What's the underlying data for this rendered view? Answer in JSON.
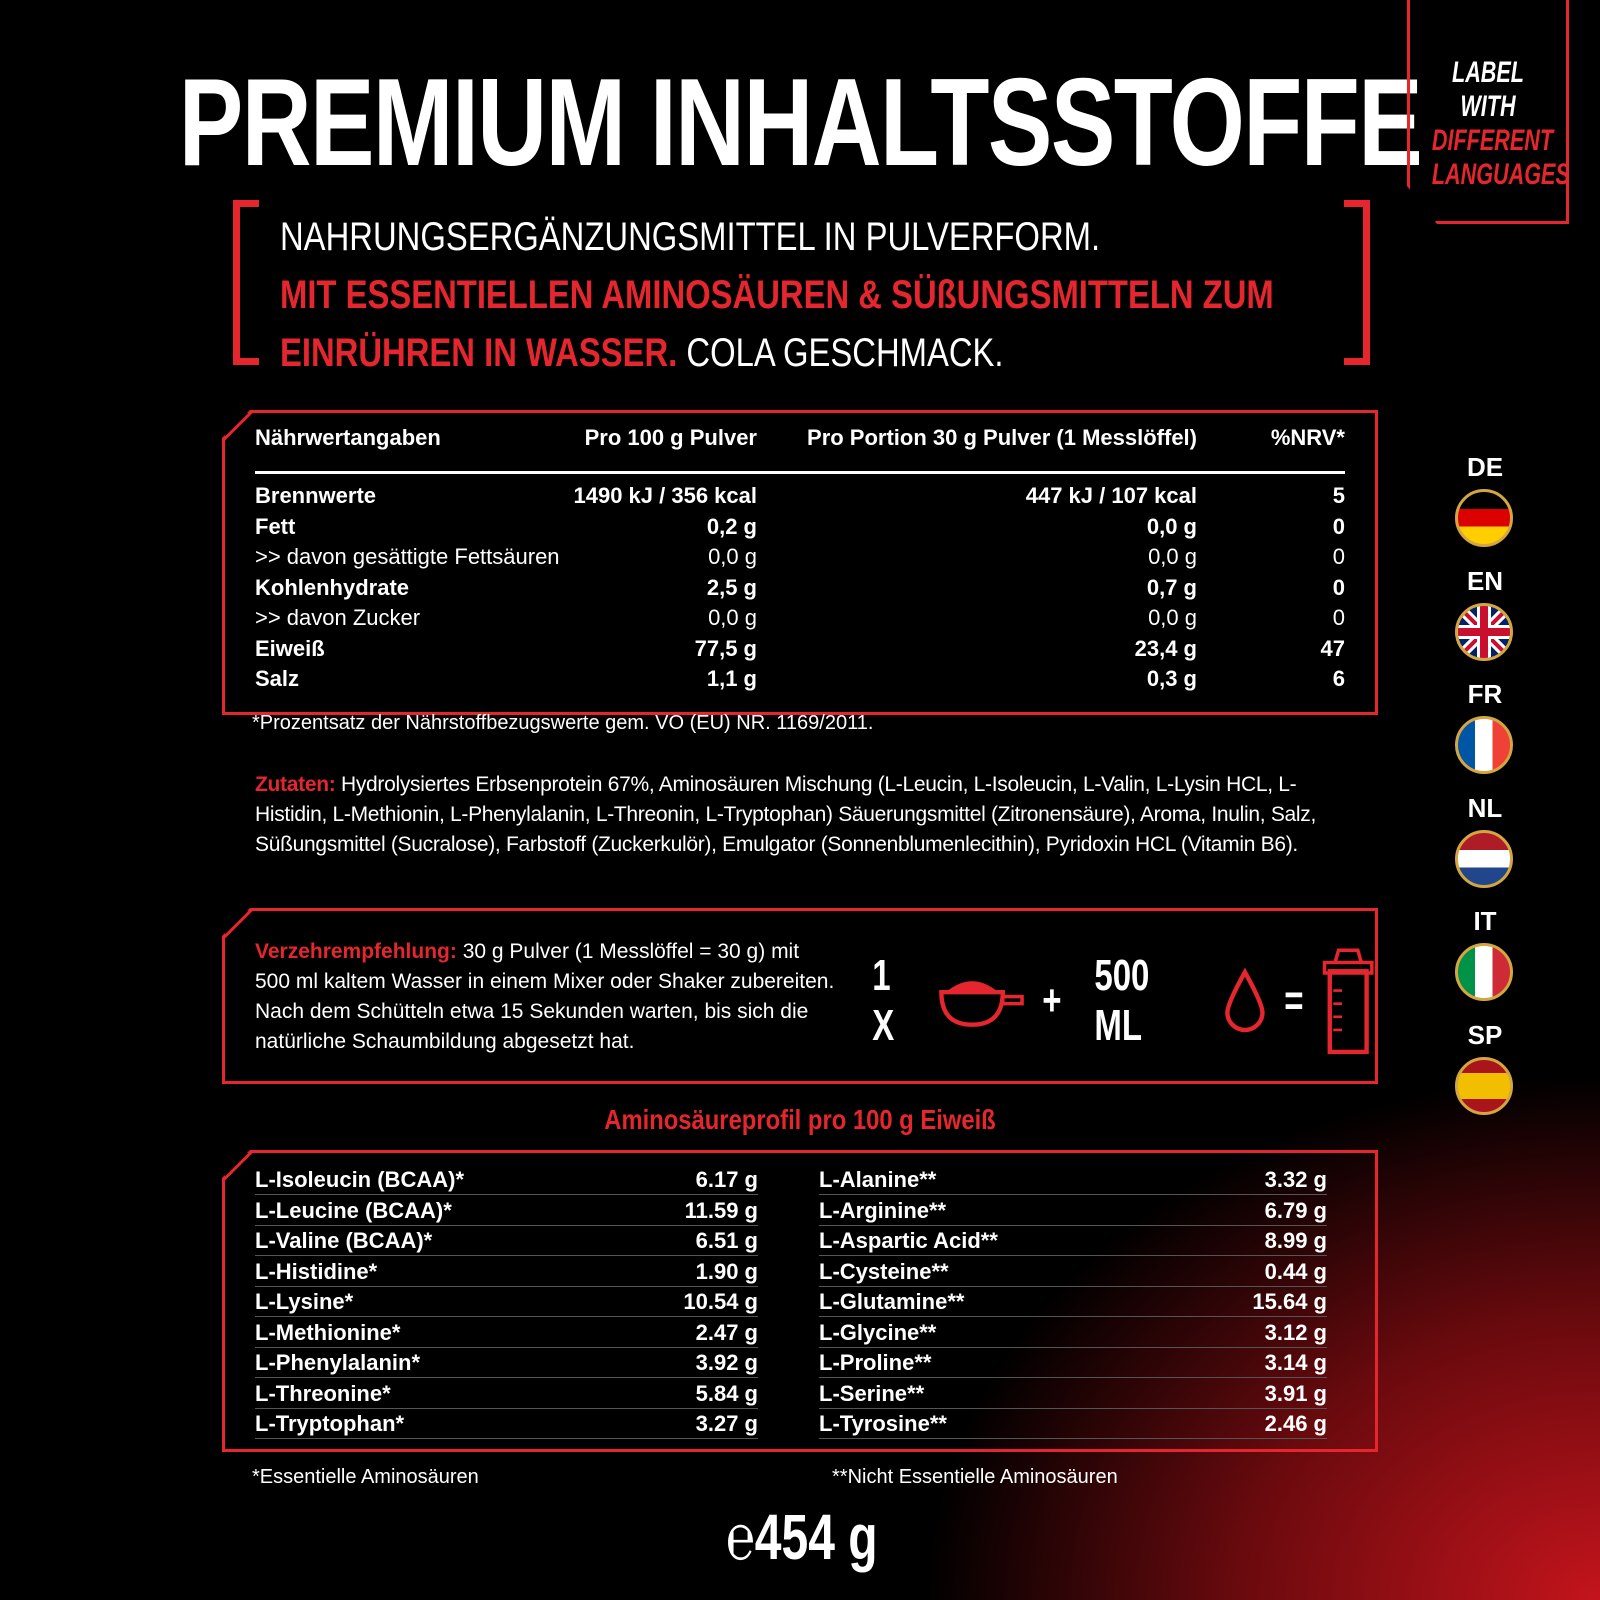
{
  "title": "PREMIUM INHALTSSTOFFE",
  "badge": {
    "line1": "LABEL WITH",
    "line2": "DIFFERENT",
    "line3": "LANGUAGES"
  },
  "intro": {
    "white1": "NAHRUNGSERGÄNZUNGSMITTEL IN PULVERFORM.",
    "red1": "MIT ESSENTIELLEN AMINOSÄUREN & SÜßUNGSMITTELN ZUM",
    "red2": "EINRÜHREN IN WASSER.",
    "white2": " COLA GESCHMACK."
  },
  "nutrition": {
    "headers": [
      "Nährwertangaben",
      "Pro 100 g Pulver",
      "Pro Portion 30 g Pulver (1 Messlöffel)",
      "%NRV*"
    ],
    "rows": [
      {
        "name": "Brennwerte",
        "per100": "1490 kJ / 356 kcal",
        "perPortion": "447 kJ / 107 kcal",
        "nrv": "5",
        "bold": true
      },
      {
        "name": "Fett",
        "per100": "0,2 g",
        "perPortion": "0,0 g",
        "nrv": "0",
        "bold": true
      },
      {
        "name": ">> davon gesättigte Fettsäuren",
        "per100": "0,0 g",
        "perPortion": "0,0 g",
        "nrv": "0",
        "bold": false
      },
      {
        "name": "Kohlenhydrate",
        "per100": "2,5 g",
        "perPortion": "0,7 g",
        "nrv": "0",
        "bold": true
      },
      {
        "name": ">> davon Zucker",
        "per100": "0,0 g",
        "perPortion": "0,0 g",
        "nrv": "0",
        "bold": false
      },
      {
        "name": "Eiweiß",
        "per100": "77,5 g",
        "perPortion": "23,4 g",
        "nrv": "47",
        "bold": true
      },
      {
        "name": "Salz",
        "per100": "1,1 g",
        "perPortion": "0,3 g",
        "nrv": "6",
        "bold": true
      }
    ],
    "footnote": "*Prozentsatz der Nährstoffbezugswerte gem. VO (EU) NR. 1169/2011."
  },
  "ingredients": {
    "label": "Zutaten:",
    "text": " Hydrolysiertes Erbsenprotein 67%, Aminosäuren Mischung (L-Leucin, L-Isoleucin, L-Valin, L-Lysin HCL, L-Histidin, L-Methionin, L-Phenylalanin, L-Threonin, L-Tryptophan) Säuerungsmittel (Zitronensäure), Aroma, Inulin, Salz, Süßungsmittel (Sucralose), Farbstoff (Zuckerkulör), Emulgator (Sonnenblumenlecithin), Pyridoxin HCL (Vitamin B6)."
  },
  "usage": {
    "label": "Verzehrempfehlung:",
    "text": " 30 g Pulver (1 Messlöffel = 30 g) mit 500 ml kaltem Wasser in einem Mixer oder Shaker zubereiten. Nach dem Schütteln etwa 15 Sekunden warten, bis sich die natürliche Schaumbildung abgesetzt hat.",
    "qty": "1 X",
    "plus": "+",
    "water": "500 ML",
    "equals": "="
  },
  "amino": {
    "title": "Aminosäureprofil pro 100 g Eiweiß",
    "left": [
      [
        "L-Isoleucin (BCAA)*",
        "6.17 g"
      ],
      [
        "L-Leucine (BCAA)*",
        "11.59 g"
      ],
      [
        "L-Valine (BCAA)*",
        "6.51 g"
      ],
      [
        "L-Histidine*",
        "1.90 g"
      ],
      [
        "L-Lysine*",
        "10.54 g"
      ],
      [
        "L-Methionine*",
        "2.47 g"
      ],
      [
        "L-Phenylalanin*",
        "3.92 g"
      ],
      [
        "L-Threonine*",
        "5.84 g"
      ],
      [
        "L-Tryptophan*",
        "3.27 g"
      ]
    ],
    "right": [
      [
        "L-Alanine**",
        "3.32 g"
      ],
      [
        "L-Arginine**",
        "6.79 g"
      ],
      [
        "L-Aspartic Acid**",
        "8.99 g"
      ],
      [
        "L-Cysteine**",
        "0.44 g"
      ],
      [
        "L-Glutamine**",
        "15.64 g"
      ],
      [
        "L-Glycine**",
        "3.12 g"
      ],
      [
        "L-Proline**",
        "3.14 g"
      ],
      [
        "L-Serine**",
        "3.91 g"
      ],
      [
        "L-Tyrosine**",
        "2.46 g"
      ]
    ],
    "foot_left": "*Essentielle Aminosäuren",
    "foot_right": "**Nicht Essentielle Aminosäuren"
  },
  "weight": "℮454 g",
  "languages": [
    "DE",
    "EN",
    "FR",
    "NL",
    "IT",
    "SP"
  ],
  "colors": {
    "accent": "#e5262e",
    "background": "#000000"
  }
}
